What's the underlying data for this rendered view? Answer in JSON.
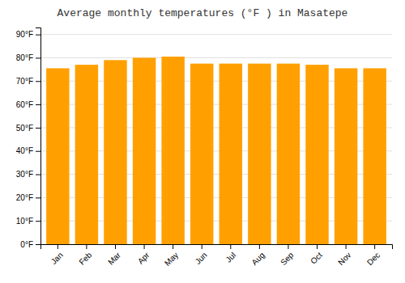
{
  "chart_data": {
    "type": "bar",
    "title": "Average monthly temperatures (°F ) in Masatepe",
    "categories": [
      "Jan",
      "Feb",
      "Mar",
      "Apr",
      "May",
      "Jun",
      "Jul",
      "Aug",
      "Sep",
      "Oct",
      "Nov",
      "Dec"
    ],
    "values": [
      75.5,
      77.0,
      79.0,
      80.0,
      80.5,
      77.5,
      77.5,
      77.5,
      77.5,
      77.0,
      75.5,
      75.5
    ],
    "color": "#FFA000",
    "ylim": [
      0,
      93
    ],
    "yticks": [
      {
        "value": 0,
        "label": "0°F"
      },
      {
        "value": 10,
        "label": "10°F"
      },
      {
        "value": 20,
        "label": "20°F"
      },
      {
        "value": 30,
        "label": "30°F"
      },
      {
        "value": 40,
        "label": "40°F"
      },
      {
        "value": 50,
        "label": "50°F"
      },
      {
        "value": 60,
        "label": "60°F"
      },
      {
        "value": 70,
        "label": "70°F"
      },
      {
        "value": 80,
        "label": "80°F"
      },
      {
        "value": 90,
        "label": "90°F"
      }
    ],
    "grid": true
  }
}
